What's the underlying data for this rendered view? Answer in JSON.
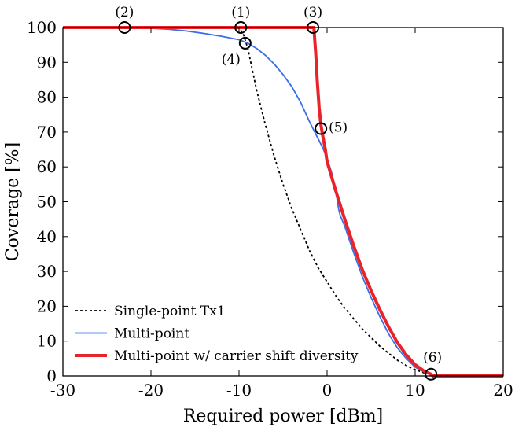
{
  "chart_data": {
    "type": "line",
    "title": "",
    "xlabel": "Required power [dBm]",
    "ylabel": "Coverage [%]",
    "xlim": [
      -30,
      20
    ],
    "ylim": [
      0,
      100
    ],
    "xticks": [
      -30,
      -20,
      -10,
      0,
      10,
      20
    ],
    "yticks": [
      0,
      10,
      20,
      30,
      40,
      50,
      60,
      70,
      80,
      90,
      100
    ],
    "xtick_labels": [
      "-30",
      "-20",
      "-10",
      "0",
      "10",
      "20"
    ],
    "ytick_labels": [
      "0",
      "10",
      "20",
      "30",
      "40",
      "50",
      "60",
      "70",
      "80",
      "90",
      "100"
    ],
    "grid": false,
    "legend_position": "bottom-left",
    "series": [
      {
        "name": "Single-point Tx1",
        "color": "#000000",
        "style": "dotted",
        "x": [
          -30,
          -10,
          -9.5,
          -9,
          -8.5,
          -8,
          -7,
          -6,
          -5,
          -4,
          -3,
          -2,
          -1,
          0,
          1,
          2,
          3,
          4,
          5,
          6,
          7,
          8,
          9,
          10,
          11,
          11.8,
          12,
          20
        ],
        "y": [
          100,
          100,
          98,
          94,
          88,
          82,
          72,
          63,
          55,
          48,
          42,
          36,
          31,
          27,
          23,
          19.5,
          16.5,
          13.5,
          11,
          8.5,
          6.5,
          4.5,
          3,
          1.8,
          0.9,
          0.5,
          0,
          0
        ]
      },
      {
        "name": "Multi-point",
        "color": "#3a6fe8",
        "style": "solid",
        "x": [
          -30,
          -25,
          -23,
          -20,
          -18,
          -16,
          -14,
          -12,
          -10,
          -9,
          -8,
          -7,
          -6,
          -5,
          -4,
          -3,
          -2,
          -1,
          -0.5,
          0,
          0.5,
          1,
          1.3,
          1.5,
          2,
          3,
          4,
          5,
          6,
          7,
          8,
          9,
          10,
          11,
          11.8,
          12,
          20
        ],
        "y": [
          100,
          100,
          100,
          99.8,
          99.5,
          99,
          98.3,
          97.5,
          96.5,
          95.5,
          94,
          92,
          89.5,
          86.5,
          83,
          78.5,
          73,
          68,
          65.5,
          62.5,
          58.5,
          53,
          48,
          46,
          43,
          35.5,
          28.5,
          22.5,
          17,
          12,
          8,
          5,
          2.5,
          1.2,
          0.5,
          0,
          0
        ]
      },
      {
        "name": "Multi-point w/ carrier shift diversity",
        "color": "#e8232a",
        "style": "solid",
        "x": [
          -30,
          -1.5,
          -1.3,
          -1.1,
          -0.9,
          -0.7,
          -0.5,
          -0.2,
          0,
          1,
          2,
          3,
          4,
          5,
          6,
          7,
          8,
          9,
          10,
          11,
          11.8,
          12,
          20
        ],
        "y": [
          100,
          100,
          93,
          84,
          77,
          72,
          69,
          65,
          61.5,
          53,
          45,
          37.5,
          30.5,
          24.5,
          19,
          14,
          9.5,
          6,
          3.2,
          1.4,
          0.5,
          0,
          0
        ]
      }
    ],
    "annotations": [
      {
        "label": "(1)",
        "x": -9.8,
        "y": 100
      },
      {
        "label": "(2)",
        "x": -23,
        "y": 100
      },
      {
        "label": "(3)",
        "x": -1.6,
        "y": 100
      },
      {
        "label": "(4)",
        "x": -9.3,
        "y": 95.5
      },
      {
        "label": "(5)",
        "x": -0.7,
        "y": 71
      },
      {
        "label": "(6)",
        "x": 11.8,
        "y": 0.5
      }
    ]
  }
}
